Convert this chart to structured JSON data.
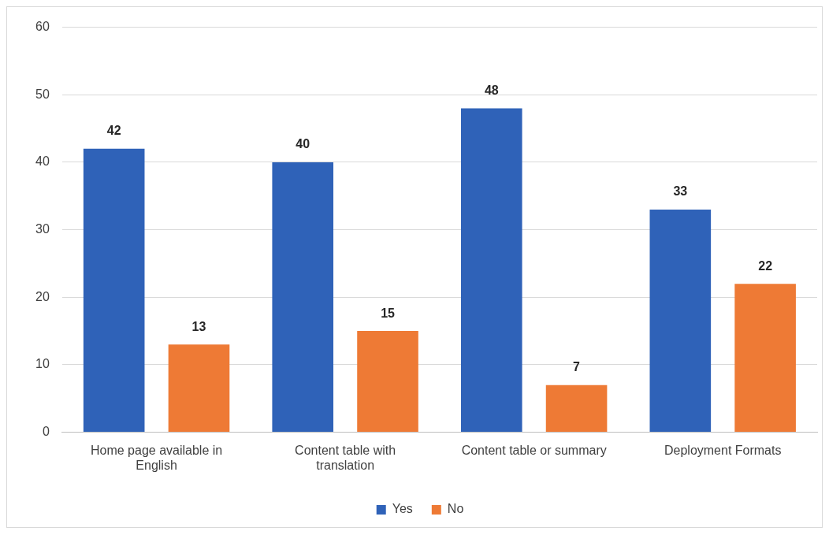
{
  "chart_data": {
    "type": "bar",
    "categories": [
      "Home page available in English",
      "Content table with translation",
      "Content table or summary",
      "Deployment Formats"
    ],
    "series": [
      {
        "name": "Yes",
        "color": "#2f62b8",
        "values": [
          42,
          40,
          48,
          33
        ]
      },
      {
        "name": "No",
        "color": "#ee7a35",
        "values": [
          13,
          15,
          7,
          22
        ]
      }
    ],
    "ylim": [
      0,
      60
    ],
    "yticks": [
      0,
      10,
      20,
      30,
      40,
      50,
      60
    ],
    "grid": "y",
    "legend": "bottom",
    "data_labels": true
  }
}
